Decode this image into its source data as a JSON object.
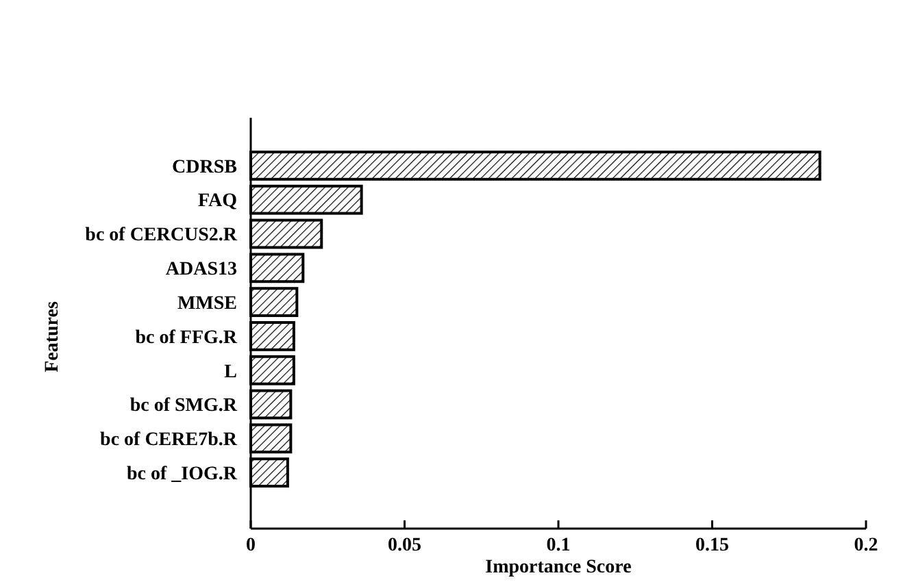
{
  "chart_data": {
    "type": "bar",
    "orientation": "horizontal",
    "xlabel": "Importance Score",
    "ylabel": "Features",
    "categories": [
      "CDRSB",
      "FAQ",
      "bc of CERCUS2.R",
      "ADAS13",
      "MMSE",
      "bc of FFG.R",
      "L",
      "bc of SMG.R",
      "bc of CERE7b.R",
      "bc of _IOG.R"
    ],
    "values": [
      0.185,
      0.036,
      0.023,
      0.017,
      0.015,
      0.014,
      0.014,
      0.013,
      0.013,
      0.012
    ],
    "color": "#000000",
    "xlim": [
      0,
      0.2
    ],
    "xticks": [
      0,
      0.05,
      0.1,
      0.15,
      0.2
    ],
    "grid": false
  }
}
